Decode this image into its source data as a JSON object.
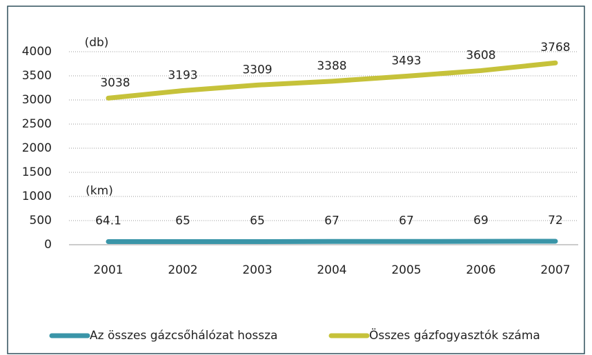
{
  "chart_data": {
    "type": "line",
    "categories": [
      "2001",
      "2002",
      "2003",
      "2004",
      "2005",
      "2006",
      "2007"
    ],
    "series": [
      {
        "name": "Az összes gázcsőhálózat hossza",
        "color": "#3a95a8",
        "values": [
          64.1,
          65,
          65,
          67,
          67,
          69,
          72
        ]
      },
      {
        "name": "Összes gázfogyasztók száma",
        "color": "#c6c23a",
        "values": [
          3038,
          3193,
          3309,
          3388,
          3493,
          3608,
          3768
        ]
      }
    ],
    "annotations": [
      "(db)",
      "(km)"
    ],
    "ylim": [
      0,
      4000
    ],
    "yticks": [
      0,
      500,
      1000,
      1500,
      2000,
      2500,
      3000,
      3500,
      4000
    ],
    "grid": true,
    "legend": "bottom"
  }
}
